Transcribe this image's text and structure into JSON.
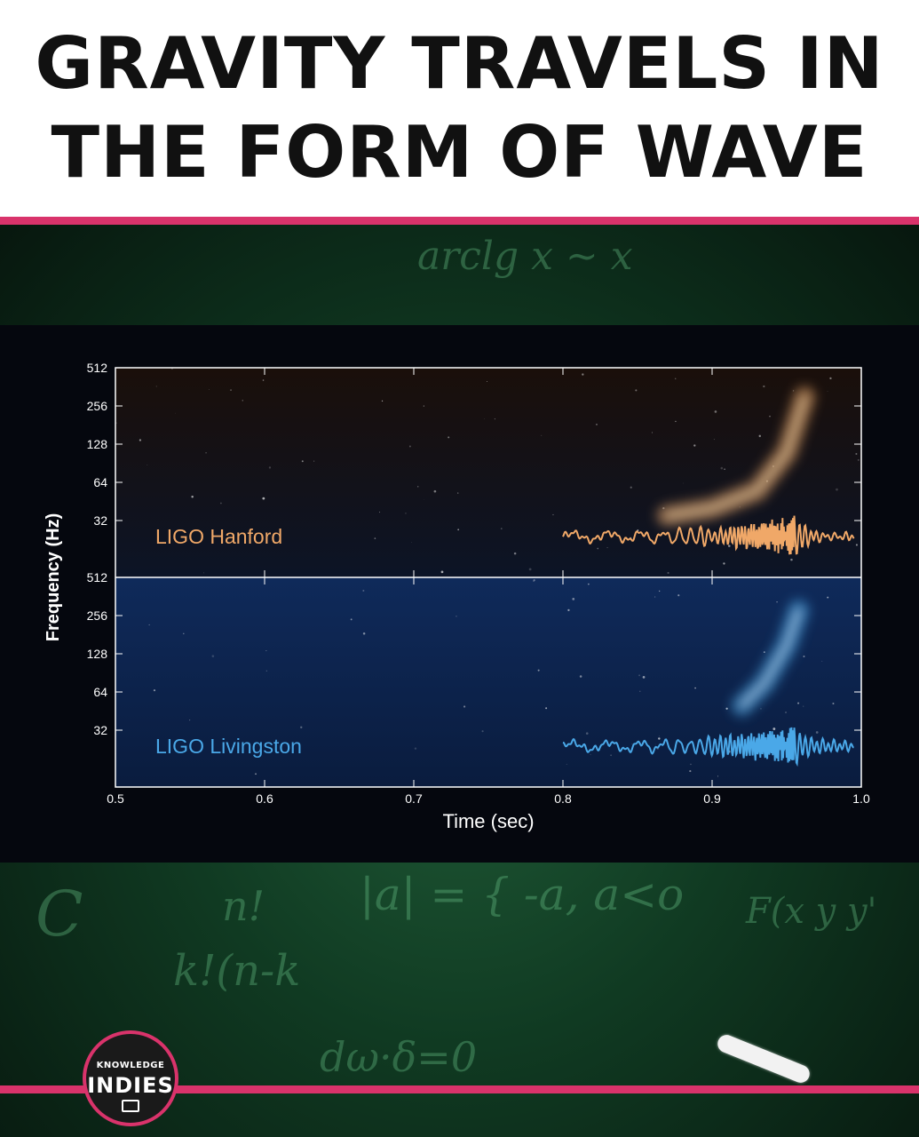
{
  "header": {
    "title_line1": "GRAVITY TRAVELS IN",
    "title_line2": "THE FORM OF WAVE"
  },
  "colors": {
    "accent": "#d9336b",
    "hanford": "#f0a868",
    "livingston": "#4aa8e8",
    "board": "#123f25"
  },
  "chalkboard": {
    "top": "arclg x ~ x",
    "bottom_left": "C",
    "bottom_mid": "|a| = { -a, a<o",
    "bottom_right": "F(x y y'",
    "fraction_top": "n!",
    "fraction_bottom": "k!(n-k",
    "bottom_formula": "dω·δ=0"
  },
  "logo": {
    "line1": "KNOWLEDGE",
    "line2": "INDIES",
    "icon": "book-icon"
  },
  "chart_data": {
    "type": "spectrogram",
    "xlabel": "Time (sec)",
    "ylabel": "Frequency (Hz)",
    "xlim": [
      0.5,
      1.0
    ],
    "xticks": [
      "0.5",
      "0.6",
      "0.7",
      "0.8",
      "0.9",
      "1.0"
    ],
    "yticks": [
      "512",
      "256",
      "128",
      "64",
      "32"
    ],
    "panels": [
      {
        "name": "LIGO Hanford",
        "color": "#f0a868",
        "chirp": {
          "t": [
            0.87,
            0.9,
            0.93,
            0.95,
            0.962
          ],
          "f_hz": [
            35,
            40,
            55,
            110,
            300
          ]
        }
      },
      {
        "name": "LIGO Livingston",
        "color": "#4aa8e8",
        "chirp": {
          "t": [
            0.92,
            0.935,
            0.95,
            0.958
          ],
          "f_hz": [
            50,
            75,
            150,
            280
          ]
        }
      }
    ]
  }
}
